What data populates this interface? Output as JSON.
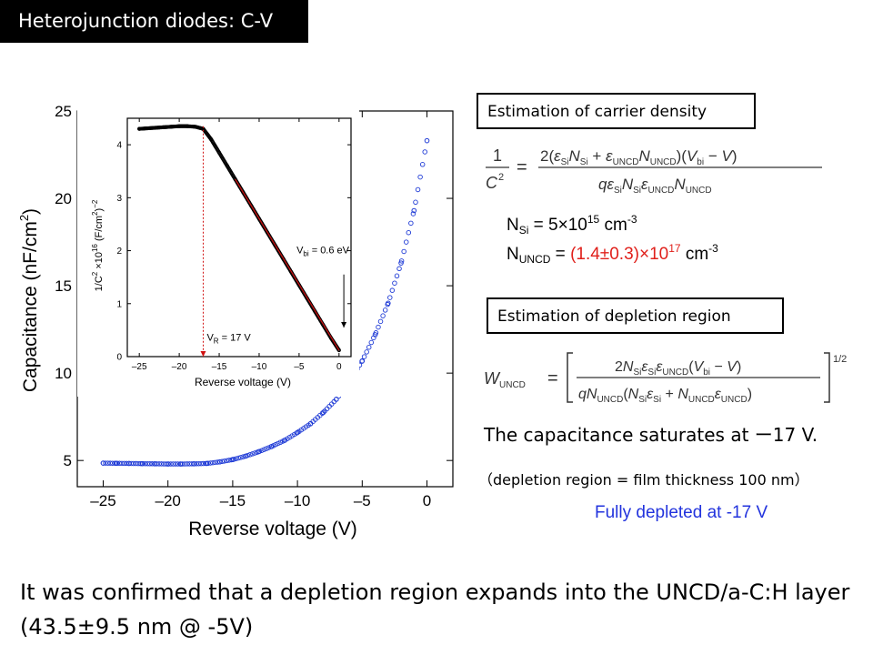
{
  "title": "Heterojunction diodes:  C-V",
  "box1": "Estimation of carrier density",
  "box2": "Estimation of depletion region",
  "nsi": {
    "label": "N",
    "sub": "Si",
    "eq": " = 5×10",
    "exp": "15",
    "unit": " cm",
    "unit_exp": "-3"
  },
  "nuncd": {
    "label": "N",
    "sub": "UNCD",
    "eq": " = ",
    "value": "(1.4±0.3)×10",
    "exp": "17",
    "unit": " cm",
    "unit_exp": "-3"
  },
  "saturates": "The capacitance saturates at ー17 V.",
  "depletion_note": "（depletion region = film thickness 100 nm）",
  "fully_depleted": "Fully depleted at -17 V",
  "conclusion": "It was confirmed that a depletion region expands into the UNCD/a-C:H layer (43.5±9.5 nm @ -5V)",
  "colors": {
    "main_series": "#1f3bd6",
    "inset_series": "#000000",
    "inset_fit": "#d01010",
    "vr_line": "#d01010",
    "highlight": "#e0201b",
    "note": "#2233dd"
  },
  "chart_data": [
    {
      "type": "scatter",
      "xlabel": "Reverse voltage (V)",
      "ylabel": "Capacitance (nF/cm",
      "ylabel_sup": "2",
      "ylabel_close": ")",
      "xlim": [
        -27,
        2
      ],
      "ylim": [
        3.5,
        25
      ],
      "xticks": [
        -25,
        -20,
        -15,
        -10,
        -5,
        0
      ],
      "xtick_labels": [
        "–25",
        "–20",
        "–15",
        "–10",
        "–5",
        "0"
      ],
      "yticks": [
        5,
        10,
        15,
        20,
        25
      ],
      "ytick_labels": [
        "5",
        "10",
        "15",
        "20",
        "25"
      ],
      "series": [
        {
          "points": [
            [
              -25,
              4.85
            ],
            [
              -24,
              4.84
            ],
            [
              -23,
              4.83
            ],
            [
              -22,
              4.82
            ],
            [
              -21,
              4.81
            ],
            [
              -20,
              4.8
            ],
            [
              -19,
              4.8
            ],
            [
              -18,
              4.81
            ],
            [
              -17,
              4.83
            ],
            [
              -16,
              4.92
            ],
            [
              -15,
              5.05
            ],
            [
              -14,
              5.25
            ],
            [
              -13,
              5.5
            ],
            [
              -12,
              5.8
            ],
            [
              -11,
              6.15
            ],
            [
              -10,
              6.6
            ],
            [
              -9,
              7.1
            ],
            [
              -8,
              7.75
            ],
            [
              -7,
              8.5
            ],
            [
              -6,
              9.5
            ],
            [
              -5,
              10.7
            ],
            [
              -4,
              12.2
            ],
            [
              -3,
              14.0
            ],
            [
              -2,
              16.3
            ],
            [
              -1,
              19.3
            ],
            [
              0,
              23.3
            ]
          ]
        }
      ]
    },
    {
      "type": "line",
      "xlabel": "Reverse voltage (V)",
      "ylabel": "1/C",
      "xlim": [
        -26.5,
        1.5
      ],
      "ylim": [
        0,
        4.5
      ],
      "xticks": [
        -25,
        -20,
        -15,
        -10,
        -5,
        0
      ],
      "xtick_labels": [
        "–25",
        "–20",
        "–15",
        "–10",
        "–5",
        "0"
      ],
      "yticks": [
        0,
        1,
        2,
        3,
        4
      ],
      "ytick_labels": [
        "0",
        "1",
        "2",
        "3",
        "4"
      ],
      "series": [
        {
          "points": [
            [
              -25,
              4.3
            ],
            [
              -24,
              4.31
            ],
            [
              -23,
              4.32
            ],
            [
              -22,
              4.33
            ],
            [
              -21,
              4.34
            ],
            [
              -20,
              4.35
            ],
            [
              -19,
              4.35
            ],
            [
              -18,
              4.34
            ],
            [
              -17,
              4.3
            ],
            [
              -16,
              4.1
            ],
            [
              -15,
              3.85
            ],
            [
              -14,
              3.6
            ],
            [
              -13,
              3.35
            ],
            [
              -12,
              3.1
            ],
            [
              -11,
              2.85
            ],
            [
              -10,
              2.6
            ],
            [
              -9,
              2.35
            ],
            [
              -8,
              2.1
            ],
            [
              -7,
              1.85
            ],
            [
              -6,
              1.6
            ],
            [
              -5,
              1.35
            ],
            [
              -4,
              1.1
            ],
            [
              -3,
              0.85
            ],
            [
              -2,
              0.6
            ],
            [
              -1,
              0.35
            ],
            [
              0,
              0.12
            ]
          ]
        },
        {
          "fit": [
            [
              -13,
              3.35
            ],
            [
              0,
              0.12
            ]
          ]
        }
      ],
      "annotations": {
        "vr_label": "V",
        "vr_sub": "R",
        "vr_value": " = 17 V",
        "vbi_label": "V",
        "vbi_sub": "bi",
        "vbi_value": " = 0.6 eV",
        "vr_x": -17,
        "vbi_arrow_x": 0.6
      }
    }
  ]
}
